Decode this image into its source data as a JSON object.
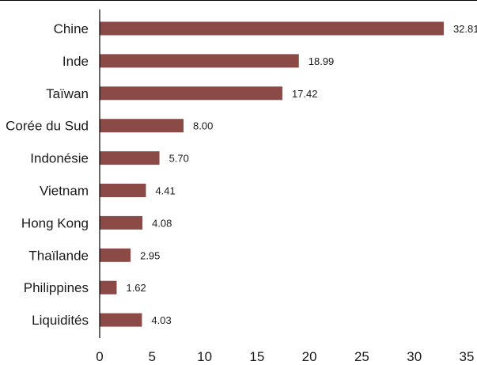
{
  "chart_data": {
    "type": "bar",
    "orientation": "horizontal",
    "categories": [
      "Chine",
      "Inde",
      "Taïwan",
      "Corée du Sud",
      "Indonésie",
      "Vietnam",
      "Hong Kong",
      "Thaïlande",
      "Philippines",
      "Liquidités"
    ],
    "values": [
      32.81,
      18.99,
      17.42,
      8.0,
      5.7,
      4.41,
      4.08,
      2.95,
      1.62,
      4.03
    ],
    "data_labels": [
      "32.81",
      "18.99",
      "17.42",
      "8.00",
      "5.70",
      "4.41",
      "4.08",
      "2.95",
      "1.62",
      "4.03"
    ],
    "xlim": [
      0,
      35
    ],
    "x_ticks": [
      0,
      5,
      10,
      15,
      20,
      25,
      30,
      35
    ],
    "x_tick_labels": [
      "0",
      "5",
      "10",
      "15",
      "20",
      "25",
      "30",
      "35"
    ],
    "grid": false,
    "legend": "none",
    "bar_color": "#8B4A45",
    "axis_color": "#000000"
  }
}
